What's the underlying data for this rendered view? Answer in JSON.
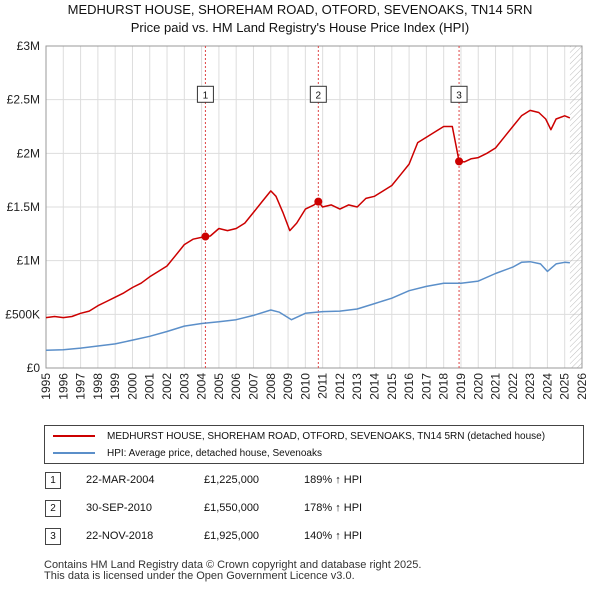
{
  "title_line1": "MEDHURST HOUSE, SHOREHAM ROAD, OTFORD, SEVENOAKS, TN14 5RN",
  "title_line2": "Price paid vs. HM Land Registry's House Price Index (HPI)",
  "chart_data": {
    "type": "line",
    "xlim": [
      1995,
      2026
    ],
    "ylim": [
      0,
      3000000
    ],
    "y_ticks": [
      {
        "value": 0,
        "label": "£0"
      },
      {
        "value": 500000,
        "label": "£500K"
      },
      {
        "value": 1000000,
        "label": "£1M"
      },
      {
        "value": 1500000,
        "label": "£1.5M"
      },
      {
        "value": 2000000,
        "label": "£2M"
      },
      {
        "value": 2500000,
        "label": "£2.5M"
      },
      {
        "value": 3000000,
        "label": "£3M"
      }
    ],
    "x_ticks": [
      "1995",
      "1996",
      "1997",
      "1998",
      "1999",
      "2000",
      "2001",
      "2002",
      "2003",
      "2004",
      "2005",
      "2006",
      "2007",
      "2008",
      "2009",
      "2010",
      "2011",
      "2012",
      "2013",
      "2014",
      "2015",
      "2016",
      "2017",
      "2018",
      "2019",
      "2020",
      "2021",
      "2022",
      "2023",
      "2024",
      "2025",
      "2026"
    ],
    "grid": true,
    "series": [
      {
        "name": "MEDHURST HOUSE, SHOREHAM ROAD, OTFORD, SEVENOAKS, TN14 5RN (detached house)",
        "color": "#cc0000",
        "points": [
          [
            1995.0,
            470000
          ],
          [
            1995.5,
            480000
          ],
          [
            1996.0,
            470000
          ],
          [
            1996.5,
            480000
          ],
          [
            1997.0,
            510000
          ],
          [
            1997.5,
            530000
          ],
          [
            1998.0,
            580000
          ],
          [
            1998.5,
            620000
          ],
          [
            1999.0,
            660000
          ],
          [
            1999.5,
            700000
          ],
          [
            2000.0,
            750000
          ],
          [
            2000.5,
            790000
          ],
          [
            2001.0,
            850000
          ],
          [
            2001.5,
            900000
          ],
          [
            2002.0,
            950000
          ],
          [
            2002.5,
            1050000
          ],
          [
            2003.0,
            1150000
          ],
          [
            2003.5,
            1200000
          ],
          [
            2004.22,
            1225000
          ],
          [
            2004.5,
            1230000
          ],
          [
            2005.0,
            1300000
          ],
          [
            2005.5,
            1280000
          ],
          [
            2006.0,
            1300000
          ],
          [
            2006.5,
            1350000
          ],
          [
            2007.0,
            1450000
          ],
          [
            2007.5,
            1550000
          ],
          [
            2008.0,
            1650000
          ],
          [
            2008.3,
            1600000
          ],
          [
            2008.7,
            1450000
          ],
          [
            2009.1,
            1280000
          ],
          [
            2009.5,
            1350000
          ],
          [
            2010.0,
            1480000
          ],
          [
            2010.5,
            1520000
          ],
          [
            2010.75,
            1550000
          ],
          [
            2011.0,
            1500000
          ],
          [
            2011.5,
            1520000
          ],
          [
            2012.0,
            1480000
          ],
          [
            2012.5,
            1520000
          ],
          [
            2013.0,
            1500000
          ],
          [
            2013.5,
            1580000
          ],
          [
            2014.0,
            1600000
          ],
          [
            2014.5,
            1650000
          ],
          [
            2015.0,
            1700000
          ],
          [
            2015.5,
            1800000
          ],
          [
            2016.0,
            1900000
          ],
          [
            2016.5,
            2100000
          ],
          [
            2017.0,
            2150000
          ],
          [
            2017.5,
            2200000
          ],
          [
            2018.0,
            2250000
          ],
          [
            2018.5,
            2250000
          ],
          [
            2018.89,
            1925000
          ],
          [
            2019.2,
            1920000
          ],
          [
            2019.6,
            1950000
          ],
          [
            2020.0,
            1960000
          ],
          [
            2020.5,
            2000000
          ],
          [
            2021.0,
            2050000
          ],
          [
            2021.5,
            2150000
          ],
          [
            2022.0,
            2250000
          ],
          [
            2022.5,
            2350000
          ],
          [
            2023.0,
            2400000
          ],
          [
            2023.5,
            2380000
          ],
          [
            2023.9,
            2320000
          ],
          [
            2024.2,
            2220000
          ],
          [
            2024.5,
            2320000
          ],
          [
            2025.0,
            2350000
          ],
          [
            2025.3,
            2330000
          ]
        ]
      },
      {
        "name": "HPI: Average price, detached house, Sevenoaks",
        "color": "#5b8fc9",
        "points": [
          [
            1995.0,
            165000
          ],
          [
            1996.0,
            170000
          ],
          [
            1997.0,
            185000
          ],
          [
            1998.0,
            205000
          ],
          [
            1999.0,
            225000
          ],
          [
            2000.0,
            260000
          ],
          [
            2001.0,
            295000
          ],
          [
            2002.0,
            340000
          ],
          [
            2003.0,
            390000
          ],
          [
            2004.0,
            415000
          ],
          [
            2005.0,
            430000
          ],
          [
            2006.0,
            450000
          ],
          [
            2007.0,
            490000
          ],
          [
            2008.0,
            540000
          ],
          [
            2008.5,
            520000
          ],
          [
            2009.2,
            450000
          ],
          [
            2010.0,
            510000
          ],
          [
            2011.0,
            525000
          ],
          [
            2012.0,
            530000
          ],
          [
            2013.0,
            550000
          ],
          [
            2014.0,
            600000
          ],
          [
            2015.0,
            650000
          ],
          [
            2016.0,
            720000
          ],
          [
            2017.0,
            760000
          ],
          [
            2018.0,
            790000
          ],
          [
            2019.0,
            790000
          ],
          [
            2020.0,
            810000
          ],
          [
            2021.0,
            880000
          ],
          [
            2022.0,
            940000
          ],
          [
            2022.5,
            985000
          ],
          [
            2023.0,
            990000
          ],
          [
            2023.6,
            970000
          ],
          [
            2024.0,
            900000
          ],
          [
            2024.5,
            970000
          ],
          [
            2025.0,
            985000
          ],
          [
            2025.3,
            980000
          ]
        ]
      }
    ],
    "sales": [
      {
        "num": "1",
        "year": 2004.22,
        "price": 1225000
      },
      {
        "num": "2",
        "year": 2010.75,
        "price": 1550000
      },
      {
        "num": "3",
        "year": 2018.89,
        "price": 1925000
      }
    ],
    "marker_label_price": 2550000,
    "hatch_from_year": 2025.3
  },
  "legend": {
    "property_label": "MEDHURST HOUSE, SHOREHAM ROAD, OTFORD, SEVENOAKS, TN14 5RN (detached house)",
    "hpi_label": "HPI: Average price, detached house, Sevenoaks",
    "property_color": "#cc0000",
    "hpi_color": "#5b8fc9"
  },
  "sales_table": [
    {
      "num": "1",
      "date": "22-MAR-2004",
      "price": "£1,225,000",
      "hpi": "189% ↑ HPI"
    },
    {
      "num": "2",
      "date": "30-SEP-2010",
      "price": "£1,550,000",
      "hpi": "178% ↑ HPI"
    },
    {
      "num": "3",
      "date": "22-NOV-2018",
      "price": "£1,925,000",
      "hpi": "140% ↑ HPI"
    }
  ],
  "footer_line1": "Contains HM Land Registry data © Crown copyright and database right 2025.",
  "footer_line2": "This data is licensed under the Open Government Licence v3.0."
}
